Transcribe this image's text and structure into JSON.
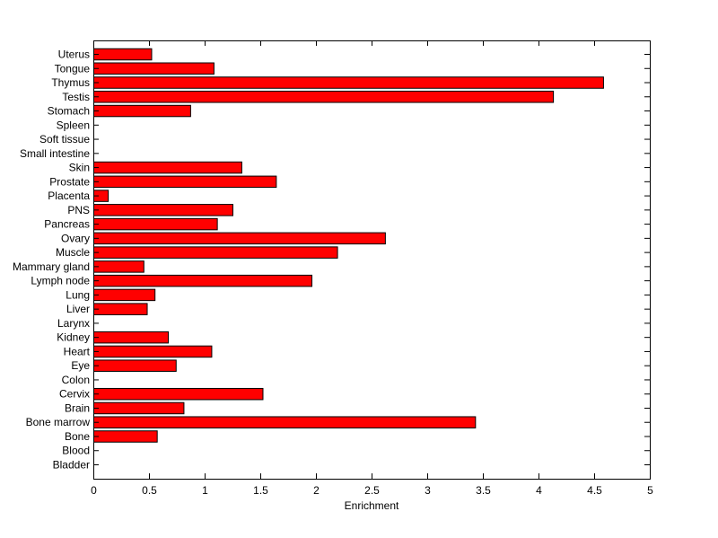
{
  "chart_data": {
    "type": "bar",
    "orientation": "horizontal",
    "categories": [
      "Uterus",
      "Tongue",
      "Thymus",
      "Testis",
      "Stomach",
      "Spleen",
      "Soft tissue",
      "Small intestine",
      "Skin",
      "Prostate",
      "Placenta",
      "PNS",
      "Pancreas",
      "Ovary",
      "Muscle",
      "Mammary gland",
      "Lymph node",
      "Lung",
      "Liver",
      "Larynx",
      "Kidney",
      "Heart",
      "Eye",
      "Colon",
      "Cervix",
      "Brain",
      "Bone marrow",
      "Bone",
      "Blood",
      "Bladder"
    ],
    "values": [
      0.52,
      1.08,
      4.58,
      4.13,
      0.87,
      0,
      0,
      0,
      1.33,
      1.64,
      0.13,
      1.25,
      1.11,
      2.62,
      2.19,
      0.45,
      1.96,
      0.55,
      0.48,
      0,
      0.67,
      1.06,
      0.74,
      0,
      1.52,
      0.81,
      3.43,
      0.57,
      0,
      0
    ],
    "xlabel": "Enrichment",
    "xlim": [
      0,
      5
    ],
    "xticks": [
      "0",
      "0.5",
      "1",
      "1.5",
      "2",
      "2.5",
      "3",
      "3.5",
      "4",
      "4.5",
      "5"
    ],
    "bar_color": "#ff0000",
    "grid": false
  }
}
